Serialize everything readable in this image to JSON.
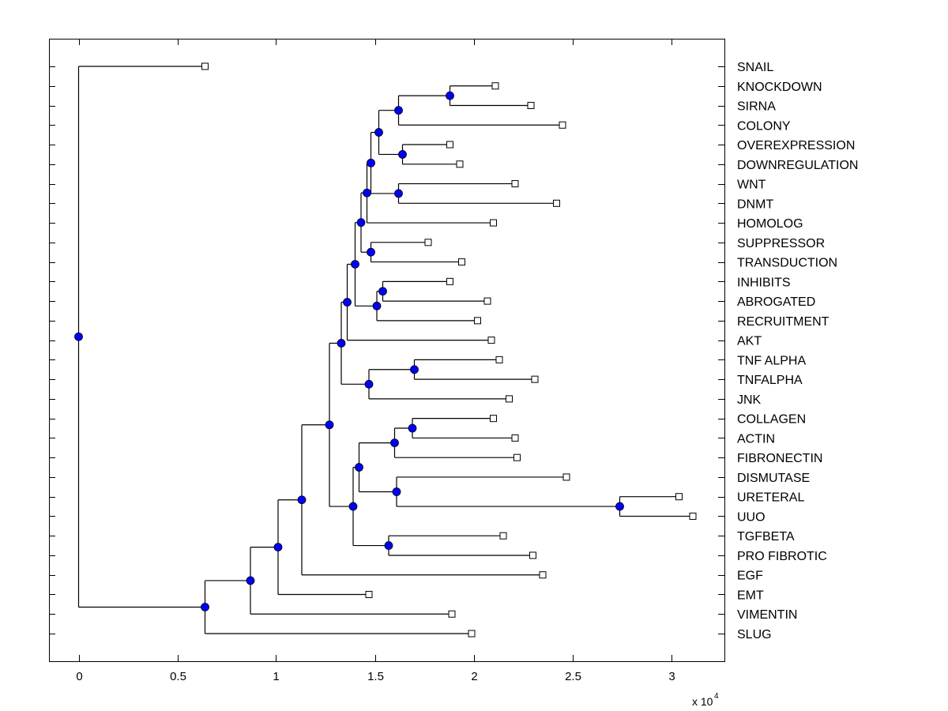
{
  "chart_data": {
    "type": "dendrogram",
    "title": "",
    "xlabel": "",
    "x_multiplier_label": "x 10",
    "x_multiplier_exponent": "4",
    "xlim": [
      -0.15,
      3.27
    ],
    "x_ticks": [
      0,
      0.5,
      1,
      1.5,
      2,
      2.5,
      3
    ],
    "x_tick_labels": [
      "0",
      "0.5",
      "1",
      "1.5",
      "2",
      "2.5",
      "3"
    ],
    "leaf_labels": [
      "SNAIL",
      "KNOCKDOWN",
      "SIRNA",
      "COLONY",
      "OVEREXPRESSION",
      "DOWNREGULATION",
      "WNT",
      "DNMT",
      "HOMOLOG",
      "SUPPRESSOR",
      "TRANSDUCTION",
      "INHIBITS",
      "ABROGATED",
      "RECRUITMENT",
      "AKT",
      "TNF ALPHA",
      "TNFALPHA",
      "JNK",
      "COLLAGEN",
      "ACTIN",
      "FIBRONECTIN",
      "DISMUTASE",
      "URETERAL",
      "UUO",
      "TGFBETA",
      "PRO FIBROTIC",
      "EGF",
      "EMT",
      "VIMENTIN",
      "SLUG"
    ],
    "leaf_x": [
      0.64,
      2.11,
      2.29,
      2.45,
      1.88,
      1.93,
      2.21,
      2.42,
      2.1,
      1.77,
      1.94,
      1.88,
      2.07,
      2.02,
      2.09,
      2.13,
      2.31,
      2.18,
      2.1,
      2.21,
      2.22,
      2.47,
      3.04,
      3.11,
      2.15,
      2.3,
      2.35,
      1.47,
      1.89,
      1.99
    ],
    "tree": {
      "x": 0.0,
      "children": [
        {
          "leaf": 0
        },
        {
          "x": 0.64,
          "children": [
            {
              "x": 0.87,
              "children": [
                {
                  "x": 1.01,
                  "children": [
                    {
                      "x": 1.13,
                      "children": [
                        {
                          "x": 1.27,
                          "children": [
                            {
                              "x": 1.33,
                              "children": [
                                {
                                  "x": 1.36,
                                  "children": [
                                    {
                                      "x": 1.4,
                                      "children": [
                                        {
                                          "x": 1.43,
                                          "children": [
                                            {
                                              "x": 1.46,
                                              "children": [
                                                {
                                                  "x": 1.48,
                                                  "children": [
                                                    {
                                                      "x": 1.52,
                                                      "children": [
                                                        {
                                                          "x": 1.62,
                                                          "children": [
                                                            {
                                                              "x": 1.88,
                                                              "children": [
                                                                {
                                                                  "leaf": 1
                                                                },
                                                                {
                                                                  "leaf": 2
                                                                }
                                                              ]
                                                            },
                                                            {
                                                              "leaf": 3
                                                            }
                                                          ]
                                                        },
                                                        {
                                                          "x": 1.64,
                                                          "children": [
                                                            {
                                                              "leaf": 4
                                                            },
                                                            {
                                                              "leaf": 5
                                                            }
                                                          ]
                                                        }
                                                      ]
                                                    },
                                                    {
                                                      "x": 1.62,
                                                      "children": [
                                                        {
                                                          "leaf": 6
                                                        },
                                                        {
                                                          "leaf": 7
                                                        }
                                                      ]
                                                    }
                                                  ]
                                                },
                                                {
                                                  "leaf": 8
                                                }
                                              ]
                                            },
                                            {
                                              "x": 1.48,
                                              "children": [
                                                {
                                                  "leaf": 9
                                                },
                                                {
                                                  "leaf": 10
                                                }
                                              ]
                                            }
                                          ]
                                        },
                                        {
                                          "x": 1.51,
                                          "children": [
                                            {
                                              "x": 1.54,
                                              "children": [
                                                {
                                                  "leaf": 11
                                                },
                                                {
                                                  "leaf": 12
                                                }
                                              ]
                                            },
                                            {
                                              "leaf": 13
                                            }
                                          ]
                                        }
                                      ]
                                    },
                                    {
                                      "leaf": 14
                                    }
                                  ]
                                },
                                {
                                  "x": 1.47,
                                  "children": [
                                    {
                                      "x": 1.7,
                                      "children": [
                                        {
                                          "leaf": 15
                                        },
                                        {
                                          "leaf": 16
                                        }
                                      ]
                                    },
                                    {
                                      "leaf": 17
                                    }
                                  ]
                                }
                              ]
                            },
                            {
                              "x": 1.39,
                              "children": [
                                {
                                  "x": 1.42,
                                  "children": [
                                    {
                                      "x": 1.6,
                                      "children": [
                                        {
                                          "x": 1.69,
                                          "children": [
                                            {
                                              "leaf": 18
                                            },
                                            {
                                              "leaf": 19
                                            }
                                          ]
                                        },
                                        {
                                          "leaf": 20
                                        }
                                      ]
                                    },
                                    {
                                      "x": 1.61,
                                      "children": [
                                        {
                                          "leaf": 21
                                        },
                                        {
                                          "x": 2.74,
                                          "children": [
                                            {
                                              "leaf": 22
                                            },
                                            {
                                              "leaf": 23
                                            }
                                          ]
                                        }
                                      ]
                                    }
                                  ]
                                },
                                {
                                  "x": 1.57,
                                  "children": [
                                    {
                                      "leaf": 24
                                    },
                                    {
                                      "leaf": 25
                                    }
                                  ]
                                }
                              ]
                            }
                          ]
                        },
                        {
                          "leaf": 26
                        }
                      ]
                    },
                    {
                      "leaf": 27
                    }
                  ]
                },
                {
                  "leaf": 28
                }
              ]
            },
            {
              "leaf": 29
            }
          ]
        }
      ]
    },
    "node_marker_color": "#0000ff",
    "leaf_marker_color": "#ffffff",
    "line_color": "#000000",
    "grid": false,
    "legend": "none"
  }
}
